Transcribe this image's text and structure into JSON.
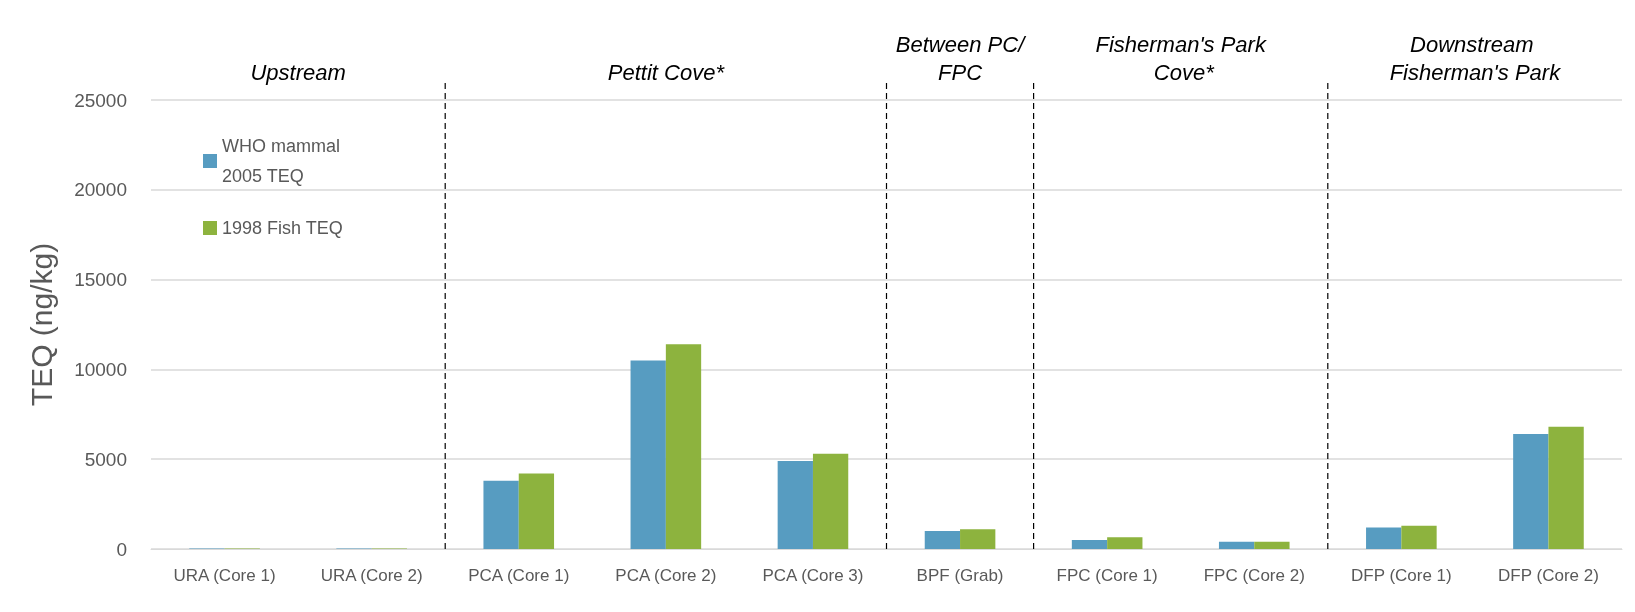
{
  "chart_data": {
    "type": "bar",
    "ylabel": "TEQ (ng/kg)",
    "categories": [
      "URA (Core 1)",
      "URA (Core 2)",
      "PCA (Core 1)",
      "PCA (Core 2)",
      "PCA (Core 3)",
      "BPF (Grab)",
      "FPC (Core 1)",
      "FPC (Core 2)",
      "DFP (Core 1)",
      "DFP (Core 2)"
    ],
    "series": [
      {
        "name": "WHO mammal 2005 TEQ",
        "color": "#579cc1",
        "values": [
          30,
          30,
          3800,
          10500,
          4900,
          1000,
          500,
          400,
          1200,
          6400
        ]
      },
      {
        "name": "1998 Fish TEQ",
        "color": "#8db33e",
        "values": [
          30,
          30,
          4200,
          11400,
          5300,
          1100,
          650,
          400,
          1300,
          6800
        ]
      }
    ],
    "ylim": [
      0,
      25000
    ],
    "yticks": [
      0,
      5000,
      10000,
      15000,
      20000,
      25000
    ],
    "grid": "y",
    "legend": "top left",
    "annotations": [
      "Upstream",
      "Pettit Cove*",
      "Between PC/FPC",
      "Fisherman's Park Cove*",
      "Downstream Fisherman's Park"
    ]
  }
}
